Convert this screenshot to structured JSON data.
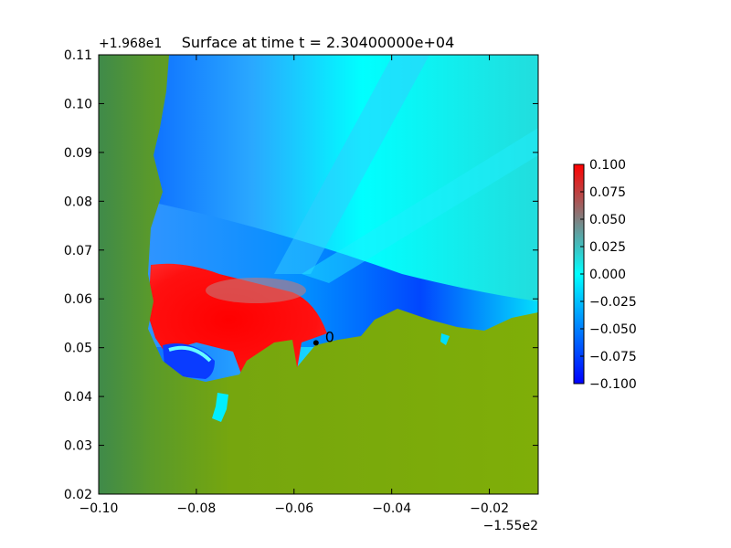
{
  "chart_data": {
    "type": "heatmap",
    "title": "Surface at time t = 2.30400000e+04",
    "xlabel": "",
    "ylabel": "",
    "x_offset_label": "−1.55e2",
    "y_offset_label": "+1.968e1",
    "xlim": [
      -0.1,
      -0.01
    ],
    "ylim": [
      0.02,
      0.11
    ],
    "x_ticks": [
      {
        "value": -0.1,
        "label": "−0.10"
      },
      {
        "value": -0.08,
        "label": "−0.08"
      },
      {
        "value": -0.06,
        "label": "−0.06"
      },
      {
        "value": -0.04,
        "label": "−0.04"
      },
      {
        "value": -0.02,
        "label": "−0.02"
      }
    ],
    "y_ticks": [
      {
        "value": 0.02,
        "label": "0.02"
      },
      {
        "value": 0.03,
        "label": "0.03"
      },
      {
        "value": 0.04,
        "label": "0.04"
      },
      {
        "value": 0.05,
        "label": "0.05"
      },
      {
        "value": 0.06,
        "label": "0.06"
      },
      {
        "value": 0.07,
        "label": "0.07"
      },
      {
        "value": 0.08,
        "label": "0.08"
      },
      {
        "value": 0.09,
        "label": "0.09"
      },
      {
        "value": 0.1,
        "label": "0.10"
      },
      {
        "value": 0.11,
        "label": "0.11"
      }
    ],
    "colorbar": {
      "range": [
        -0.1,
        0.1
      ],
      "ticks": [
        {
          "value": 0.1,
          "label": "0.100"
        },
        {
          "value": 0.075,
          "label": "0.075"
        },
        {
          "value": 0.05,
          "label": "0.050"
        },
        {
          "value": 0.025,
          "label": "0.025"
        },
        {
          "value": 0.0,
          "label": "0.000"
        },
        {
          "value": -0.025,
          "label": "−0.025"
        },
        {
          "value": -0.05,
          "label": "−0.050"
        },
        {
          "value": -0.075,
          "label": "−0.075"
        },
        {
          "value": -0.1,
          "label": "−0.100"
        }
      ],
      "colors": [
        {
          "value": -0.1,
          "color": "#0000ff"
        },
        {
          "value": 0.0,
          "color": "#00ffff"
        },
        {
          "value": 0.05,
          "color": "#808080"
        },
        {
          "value": 0.1,
          "color": "#ff0000"
        }
      ]
    },
    "land_color": "#7aa80a",
    "marker": {
      "x": -0.0555,
      "y": 0.051,
      "label": "0"
    },
    "grid": false,
    "legend": "none"
  }
}
